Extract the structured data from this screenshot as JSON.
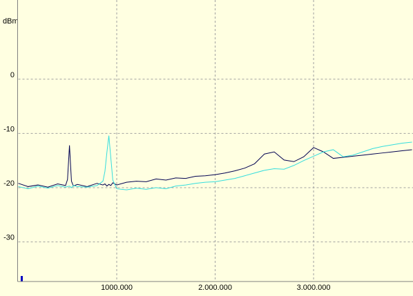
{
  "chart_data": {
    "type": "line",
    "y_label": "dBm",
    "x": [
      0,
      100000,
      200000,
      300000,
      400000,
      480000,
      500000,
      520000,
      540000,
      560000,
      600000,
      700000,
      800000,
      860000,
      880000,
      900000,
      920000,
      940000,
      960000,
      1000000,
      1100000,
      1200000,
      1300000,
      1400000,
      1500000,
      1600000,
      1700000,
      1800000,
      1900000,
      2000000,
      2100000,
      2200000,
      2300000,
      2400000,
      2500000,
      2600000,
      2700000,
      2800000,
      2900000,
      3000000,
      3100000,
      3200000,
      3300000,
      3400000,
      3500000,
      3600000,
      3700000,
      3800000,
      3900000,
      4000000
    ],
    "series": [
      {
        "color": "#000050",
        "values": [
          -19.2,
          -19.8,
          -19.5,
          -19.9,
          -19.3,
          -19.6,
          -18.5,
          -12.2,
          -18.8,
          -19.7,
          -19.4,
          -19.8,
          -19.2,
          -19.5,
          -19.3,
          -19.7,
          -19.4,
          -19.6,
          -19.1,
          -19.5,
          -19.0,
          -18.8,
          -18.9,
          -18.4,
          -18.6,
          -18.2,
          -18.3,
          -17.9,
          -17.8,
          -17.6,
          -17.3,
          -16.9,
          -16.4,
          -15.6,
          -13.8,
          -13.4,
          -14.9,
          -15.2,
          -14.3,
          -12.6,
          -13.4,
          -14.6,
          -14.4,
          -14.2,
          -14.0,
          -13.8,
          -13.6,
          -13.4,
          -13.2,
          -13.0
        ]
      },
      {
        "color": "#33dddd",
        "values": [
          -19.8,
          -20.2,
          -19.7,
          -20.1,
          -19.6,
          -19.9,
          -19.8,
          -19.7,
          -20.0,
          -19.6,
          -19.8,
          -19.9,
          -19.6,
          -18.8,
          -17.0,
          -13.5,
          -10.4,
          -14.5,
          -18.6,
          -20.2,
          -20.4,
          -20.1,
          -20.3,
          -20.0,
          -20.2,
          -19.7,
          -19.5,
          -19.2,
          -19.0,
          -18.9,
          -18.6,
          -18.3,
          -17.8,
          -17.3,
          -16.8,
          -16.5,
          -16.6,
          -15.9,
          -15.0,
          -14.2,
          -13.4,
          -13.0,
          -14.3,
          -14.0,
          -13.4,
          -12.8,
          -12.4,
          -12.1,
          -11.8,
          -11.6
        ]
      }
    ],
    "xlim": [
      0,
      4010000
    ],
    "ylim": [
      -37.3,
      14.6
    ],
    "xticks": [
      {
        "value": 1000000,
        "label": "1000.000"
      },
      {
        "value": 2000000,
        "label": "2.000.000"
      },
      {
        "value": 3000000,
        "label": "3.000.000"
      }
    ],
    "yticks": [
      0,
      -10,
      -20,
      -30
    ],
    "grid": true
  }
}
